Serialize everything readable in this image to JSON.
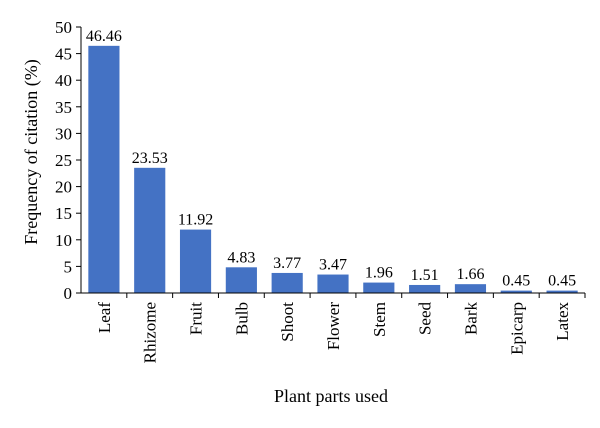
{
  "chart_data": {
    "type": "bar",
    "title": "",
    "xlabel": "Plant parts used",
    "ylabel": "Frequency of citation (%)",
    "ylim": [
      0,
      50
    ],
    "yticks": [
      0,
      5,
      10,
      15,
      20,
      25,
      30,
      35,
      40,
      45,
      50
    ],
    "grid": false,
    "legend": "none",
    "bar_color": "#4472c4",
    "categories": [
      "Leaf",
      "Rhizome",
      "Fruit",
      "Bulb",
      "Shoot",
      "Flower",
      "Stem",
      "Seed",
      "Bark",
      "Epicarp",
      "Latex"
    ],
    "values": [
      46.46,
      23.53,
      11.92,
      4.83,
      3.77,
      3.47,
      1.96,
      1.51,
      1.66,
      0.45,
      0.45
    ],
    "value_labels": [
      "46.46",
      "23.53",
      "11.92",
      "4.83",
      "3.77",
      "3.47",
      "1.96",
      "1.51",
      "1.66",
      "0.45",
      "0.45"
    ]
  }
}
